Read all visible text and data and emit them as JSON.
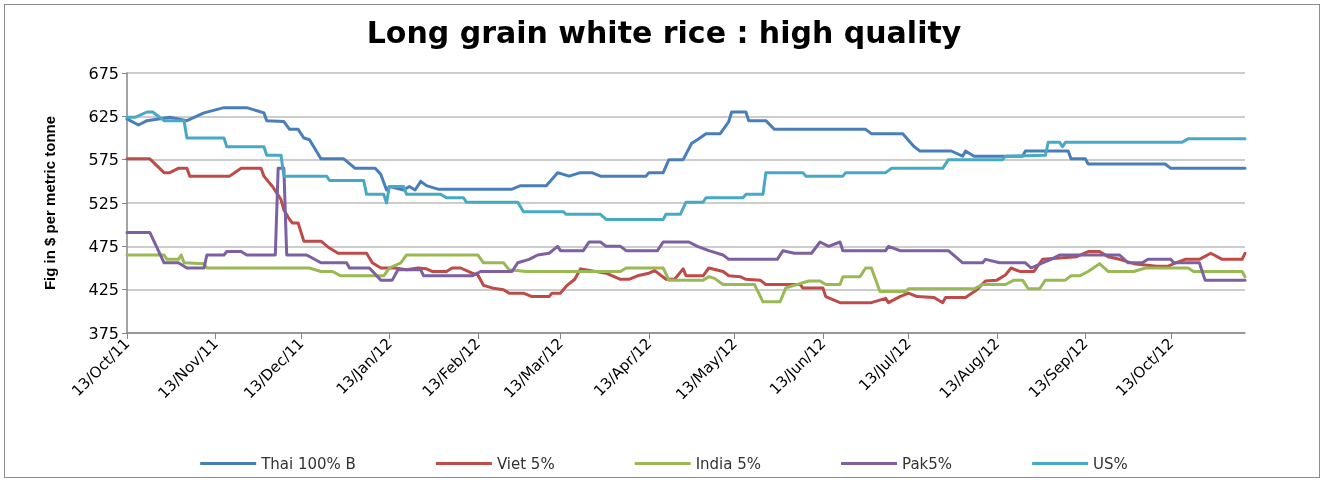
{
  "chart_data": {
    "type": "line",
    "title": "Long grain white rice : high quality",
    "ylabel": "Fig in $ per metric tonne",
    "xlim": [
      "2011-10-13",
      "2012-11-08"
    ],
    "xticks": [
      {
        "value": "2011-10-13",
        "label": "13/Oct/11"
      },
      {
        "value": "2011-11-13",
        "label": "13/Nov/11"
      },
      {
        "value": "2011-12-13",
        "label": "13/Dec/11"
      },
      {
        "value": "2012-01-13",
        "label": "13/Jan/12"
      },
      {
        "value": "2012-02-13",
        "label": "13/Feb/12"
      },
      {
        "value": "2012-03-13",
        "label": "13/Mar/12"
      },
      {
        "value": "2012-04-13",
        "label": "13/Apr/12"
      },
      {
        "value": "2012-05-13",
        "label": "13/May/12"
      },
      {
        "value": "2012-06-13",
        "label": "13/Jun/12"
      },
      {
        "value": "2012-07-13",
        "label": "13/Jul/12"
      },
      {
        "value": "2012-08-13",
        "label": "13/Aug/12"
      },
      {
        "value": "2012-09-13",
        "label": "13/Sep/12"
      },
      {
        "value": "2012-10-13",
        "label": "13/Oct/12"
      }
    ],
    "ylim": [
      375,
      675
    ],
    "yticks": [
      375,
      425,
      475,
      525,
      575,
      625,
      675
    ],
    "grid": "y",
    "legend": "bottom",
    "series": [
      {
        "name": "Thai 100% B",
        "color": "#4a7ebb",
        "x": [
          "2011-10-13",
          "2011-10-17",
          "2011-10-20",
          "2011-10-28",
          "2011-11-03",
          "2011-11-09",
          "2011-11-16",
          "2011-11-24",
          "2011-11-30",
          "2011-12-01",
          "2011-12-07",
          "2011-12-09",
          "2011-12-12",
          "2011-12-14",
          "2011-12-16",
          "2011-12-20",
          "2011-12-28",
          "2012-01-01",
          "2012-01-08",
          "2012-01-10",
          "2012-01-12",
          "2012-01-13",
          "2012-01-18",
          "2012-01-20",
          "2012-01-22",
          "2012-01-24",
          "2012-01-26",
          "2012-01-30",
          "2012-02-25",
          "2012-02-28",
          "2012-03-08",
          "2012-03-12",
          "2012-03-16",
          "2012-03-20",
          "2012-03-24",
          "2012-03-27",
          "2012-04-12",
          "2012-04-13",
          "2012-04-18",
          "2012-04-20",
          "2012-04-25",
          "2012-04-28",
          "2012-04-30",
          "2012-05-03",
          "2012-05-08",
          "2012-05-11",
          "2012-05-12",
          "2012-05-17",
          "2012-05-18",
          "2012-05-24",
          "2012-05-27",
          "2012-06-28",
          "2012-06-30",
          "2012-07-11",
          "2012-07-15",
          "2012-07-17",
          "2012-07-28",
          "2012-08-01",
          "2012-08-02",
          "2012-08-05",
          "2012-08-14",
          "2012-08-22",
          "2012-08-23",
          "2012-09-07",
          "2012-09-08",
          "2012-09-13",
          "2012-09-14",
          "2012-10-11",
          "2012-10-13",
          "2012-11-08"
        ],
        "values": [
          622,
          615,
          620,
          624,
          620,
          629,
          635,
          635,
          629,
          620,
          619,
          610,
          610,
          600,
          598,
          576,
          576,
          565,
          565,
          558,
          540,
          544,
          540,
          544,
          540,
          550,
          545,
          541,
          541,
          545,
          545,
          560,
          556,
          560,
          560,
          556,
          556,
          560,
          560,
          575,
          575,
          594,
          598,
          605,
          605,
          619,
          630,
          630,
          620,
          620,
          610,
          610,
          605,
          605,
          590,
          585,
          585,
          579,
          585,
          579,
          579,
          579,
          585,
          585,
          576,
          576,
          570,
          570,
          565,
          565
        ]
      },
      {
        "name": "Viet 5%",
        "color": "#be4b48",
        "x": [
          "2011-10-13",
          "2011-10-21",
          "2011-10-26",
          "2011-10-28",
          "2011-10-31",
          "2011-11-03",
          "2011-11-04",
          "2011-11-18",
          "2011-11-22",
          "2011-11-29",
          "2011-11-30",
          "2011-12-03",
          "2011-12-06",
          "2011-12-07",
          "2011-12-09",
          "2011-12-10",
          "2011-12-12",
          "2011-12-14",
          "2011-12-20",
          "2011-12-23",
          "2011-12-26",
          "2012-01-05",
          "2012-01-07",
          "2012-01-10",
          "2012-01-15",
          "2012-01-19",
          "2012-01-23",
          "2012-01-26",
          "2012-01-28",
          "2012-02-02",
          "2012-02-04",
          "2012-02-07",
          "2012-02-11",
          "2012-02-13",
          "2012-02-15",
          "2012-02-18",
          "2012-02-22",
          "2012-02-24",
          "2012-02-29",
          "2012-03-03",
          "2012-03-09",
          "2012-03-10",
          "2012-03-13",
          "2012-03-15",
          "2012-03-18",
          "2012-03-20",
          "2012-03-29",
          "2012-04-03",
          "2012-04-06",
          "2012-04-09",
          "2012-04-13",
          "2012-04-15",
          "2012-04-19",
          "2012-04-22",
          "2012-04-25",
          "2012-04-26",
          "2012-05-02",
          "2012-05-04",
          "2012-05-09",
          "2012-05-11",
          "2012-05-15",
          "2012-05-17",
          "2012-05-22",
          "2012-05-24",
          "2012-06-05",
          "2012-06-06",
          "2012-06-13",
          "2012-06-14",
          "2012-06-19",
          "2012-06-30",
          "2012-07-05",
          "2012-07-06",
          "2012-07-10",
          "2012-07-13",
          "2012-07-16",
          "2012-07-22",
          "2012-07-25",
          "2012-07-26",
          "2012-08-02",
          "2012-08-06",
          "2012-08-09",
          "2012-08-13",
          "2012-08-16",
          "2012-08-18",
          "2012-08-21",
          "2012-08-26",
          "2012-08-29",
          "2012-09-10",
          "2012-09-14",
          "2012-09-18",
          "2012-09-21",
          "2012-09-25",
          "2012-09-30",
          "2012-10-08",
          "2012-10-12",
          "2012-10-14",
          "2012-10-18",
          "2012-10-23",
          "2012-10-27",
          "2012-10-31",
          "2012-11-07",
          "2012-11-08"
        ],
        "values": [
          576,
          576,
          560,
          560,
          565,
          565,
          556,
          556,
          565,
          565,
          556,
          544,
          529,
          517,
          506,
          502,
          502,
          481,
          481,
          473,
          467,
          467,
          456,
          450,
          450,
          448,
          450,
          449,
          446,
          446,
          450,
          450,
          444,
          442,
          430,
          427,
          425,
          421,
          421,
          417,
          417,
          421,
          421,
          429,
          437,
          449,
          444,
          437,
          437,
          441,
          444,
          447,
          437,
          437,
          449,
          441,
          441,
          450,
          446,
          441,
          440,
          437,
          436,
          431,
          431,
          427,
          427,
          417,
          410,
          410,
          415,
          410,
          417,
          421,
          417,
          416,
          410,
          416,
          416,
          425,
          435,
          436,
          442,
          450,
          446,
          446,
          460,
          463,
          469,
          469,
          463,
          460,
          455,
          452,
          452,
          455,
          460,
          460,
          467,
          460,
          460,
          467
        ]
      },
      {
        "name": "India 5%",
        "color": "#98b954",
        "x": [
          "2011-10-13",
          "2011-10-26",
          "2011-10-27",
          "2011-10-31",
          "2011-11-01",
          "2011-11-02",
          "2011-11-09",
          "2011-11-10",
          "2011-12-16",
          "2011-12-20",
          "2011-12-24",
          "2011-12-27",
          "2012-01-11",
          "2012-01-13",
          "2012-01-17",
          "2012-01-19",
          "2012-02-13",
          "2012-02-15",
          "2012-02-22",
          "2012-02-24",
          "2012-03-01",
          "2012-04-03",
          "2012-04-05",
          "2012-04-18",
          "2012-04-20",
          "2012-05-02",
          "2012-05-04",
          "2012-05-06",
          "2012-05-09",
          "2012-05-16",
          "2012-05-20",
          "2012-05-23",
          "2012-05-29",
          "2012-05-31",
          "2012-06-08",
          "2012-06-12",
          "2012-06-14",
          "2012-06-19",
          "2012-06-20",
          "2012-06-26",
          "2012-06-28",
          "2012-06-30",
          "2012-07-03",
          "2012-07-12",
          "2012-07-13",
          "2012-08-05",
          "2012-08-08",
          "2012-08-16",
          "2012-08-19",
          "2012-08-22",
          "2012-08-24",
          "2012-08-28",
          "2012-08-30",
          "2012-09-06",
          "2012-09-08",
          "2012-09-11",
          "2012-09-14",
          "2012-09-18",
          "2012-09-21",
          "2012-09-30",
          "2012-10-04",
          "2012-10-19",
          "2012-10-21",
          "2012-11-07",
          "2012-11-08"
        ],
        "values": [
          465,
          465,
          460,
          460,
          465,
          456,
          455,
          450,
          450,
          446,
          446,
          441,
          441,
          450,
          456,
          465,
          465,
          456,
          456,
          448,
          446,
          446,
          450,
          450,
          436,
          436,
          440,
          438,
          431,
          431,
          431,
          411,
          411,
          427,
          435,
          435,
          431,
          431,
          440,
          440,
          450,
          450,
          423,
          423,
          426,
          426,
          431,
          431,
          436,
          436,
          426,
          426,
          436,
          436,
          441,
          441,
          446,
          455,
          446,
          446,
          450,
          450,
          446,
          446,
          440
        ]
      },
      {
        "name": "Pak5%",
        "color": "#7d60a0",
        "x": [
          "2011-10-13",
          "2011-10-21",
          "2011-10-26",
          "2011-10-31",
          "2011-11-03",
          "2011-11-09",
          "2011-11-10",
          "2011-11-16",
          "2011-11-17",
          "2011-11-22",
          "2011-11-24",
          "2011-12-04",
          "2011-12-05",
          "2011-12-07",
          "2011-12-08",
          "2011-12-15",
          "2011-12-20",
          "2011-12-29",
          "2011-12-30",
          "2012-01-06",
          "2012-01-10",
          "2012-01-14",
          "2012-01-16",
          "2012-01-24",
          "2012-01-25",
          "2012-02-11",
          "2012-02-14",
          "2012-02-25",
          "2012-02-27",
          "2012-03-02",
          "2012-03-05",
          "2012-03-09",
          "2012-03-12",
          "2012-03-13",
          "2012-03-21",
          "2012-03-23",
          "2012-03-27",
          "2012-03-29",
          "2012-04-03",
          "2012-04-05",
          "2012-04-16",
          "2012-04-18",
          "2012-04-27",
          "2012-04-30",
          "2012-05-04",
          "2012-05-09",
          "2012-05-11",
          "2012-05-28",
          "2012-05-30",
          "2012-06-03",
          "2012-06-09",
          "2012-06-12",
          "2012-06-15",
          "2012-06-19",
          "2012-06-20",
          "2012-07-05",
          "2012-07-06",
          "2012-07-10",
          "2012-07-27",
          "2012-08-01",
          "2012-08-08",
          "2012-08-09",
          "2012-08-14",
          "2012-08-23",
          "2012-08-25",
          "2012-08-29",
          "2012-09-01",
          "2012-09-04",
          "2012-09-25",
          "2012-09-28",
          "2012-10-03",
          "2012-10-05",
          "2012-10-13",
          "2012-10-14",
          "2012-10-23",
          "2012-10-25",
          "2012-11-08"
        ],
        "values": [
          491,
          491,
          456,
          456,
          450,
          450,
          465,
          465,
          469,
          469,
          465,
          465,
          565,
          565,
          465,
          465,
          456,
          456,
          450,
          450,
          436,
          436,
          448,
          448,
          441,
          441,
          446,
          446,
          456,
          460,
          465,
          467,
          475,
          470,
          470,
          480,
          480,
          475,
          475,
          470,
          470,
          480,
          480,
          475,
          470,
          465,
          460,
          460,
          470,
          467,
          467,
          480,
          475,
          480,
          470,
          470,
          475,
          470,
          470,
          456,
          456,
          460,
          456,
          456,
          450,
          456,
          460,
          465,
          465,
          456,
          456,
          460,
          460,
          456,
          456,
          436,
          436
        ]
      },
      {
        "name": "US%",
        "color": "#46aac5",
        "x": [
          "2011-10-13",
          "2011-10-16",
          "2011-10-20",
          "2011-10-22",
          "2011-10-26",
          "2011-11-02",
          "2011-11-03",
          "2011-11-16",
          "2011-11-17",
          "2011-11-30",
          "2011-12-01",
          "2011-12-06",
          "2011-12-07",
          "2011-12-22",
          "2011-12-23",
          "2012-01-04",
          "2012-01-05",
          "2012-01-11",
          "2012-01-12",
          "2012-01-13",
          "2012-01-18",
          "2012-01-19",
          "2012-01-31",
          "2012-02-02",
          "2012-02-08",
          "2012-02-09",
          "2012-02-27",
          "2012-02-29",
          "2012-03-14",
          "2012-03-15",
          "2012-03-27",
          "2012-03-29",
          "2012-04-18",
          "2012-04-19",
          "2012-04-24",
          "2012-04-26",
          "2012-05-02",
          "2012-05-03",
          "2012-05-16",
          "2012-05-17",
          "2012-05-23",
          "2012-05-24",
          "2012-06-06",
          "2012-06-07",
          "2012-06-20",
          "2012-06-21",
          "2012-07-05",
          "2012-07-07",
          "2012-07-25",
          "2012-07-27",
          "2012-08-15",
          "2012-08-16",
          "2012-08-30",
          "2012-08-31",
          "2012-09-04",
          "2012-09-05",
          "2012-09-06",
          "2012-10-17",
          "2012-10-19",
          "2012-11-08"
        ],
        "values": [
          624,
          624,
          630,
          630,
          620,
          620,
          600,
          600,
          590,
          590,
          580,
          580,
          556,
          556,
          551,
          551,
          535,
          535,
          525,
          544,
          544,
          535,
          535,
          531,
          531,
          526,
          526,
          515,
          515,
          512,
          512,
          506,
          506,
          512,
          512,
          526,
          526,
          531,
          531,
          535,
          535,
          560,
          560,
          556,
          556,
          560,
          560,
          565,
          565,
          575,
          575,
          579,
          580,
          595,
          595,
          590,
          595,
          595,
          599,
          599
        ]
      }
    ]
  }
}
